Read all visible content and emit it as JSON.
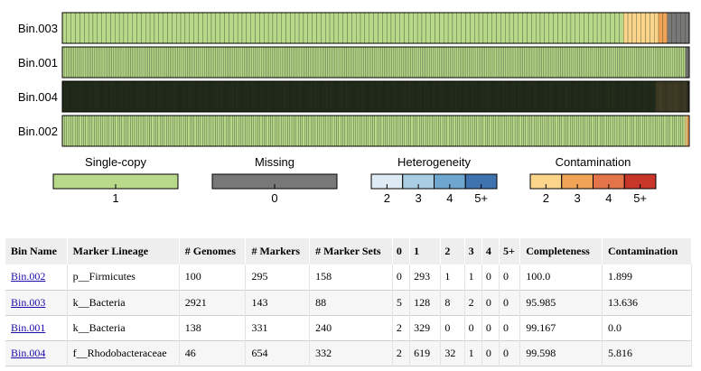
{
  "chart_data": {
    "type": "heatmap",
    "bins": [
      {
        "name": "Bin.003",
        "markers": 143,
        "counts": {
          "missing": 5,
          "single": 128,
          "het2": 0,
          "cont2": 8,
          "cont3": 2
        }
      },
      {
        "name": "Bin.001",
        "markers": 331,
        "counts": {
          "missing": 2,
          "single": 329
        }
      },
      {
        "name": "Bin.004",
        "markers": 654,
        "counts": {
          "missing": 2,
          "single": 619,
          "cont2": 32,
          "cont3": 1
        }
      },
      {
        "name": "Bin.002",
        "markers": 295,
        "counts": {
          "missing": 0,
          "single": 293,
          "cont2": 1,
          "cont3": 1
        }
      }
    ],
    "legend": {
      "single_copy": {
        "title": "Single-copy",
        "ticks": [
          "1"
        ],
        "colors": [
          "#b8d98a"
        ]
      },
      "missing": {
        "title": "Missing",
        "ticks": [
          "0"
        ],
        "colors": [
          "#787878"
        ]
      },
      "heterogeneity": {
        "title": "Heterogeneity",
        "ticks": [
          "2",
          "3",
          "4",
          "5+"
        ],
        "colors": [
          "#deebf5",
          "#a9cde3",
          "#6fa6cf",
          "#3f73b0"
        ]
      },
      "contamination": {
        "title": "Contamination",
        "ticks": [
          "2",
          "3",
          "4",
          "5+"
        ],
        "colors": [
          "#fbd58a",
          "#f1a458",
          "#e4744a",
          "#c8362a"
        ]
      }
    }
  },
  "table": {
    "headers": [
      "Bin Name",
      "Marker Lineage",
      "# Genomes",
      "# Markers",
      "# Marker Sets",
      "0",
      "1",
      "2",
      "3",
      "4",
      "5+",
      "Completeness",
      "Contamination"
    ],
    "rows": [
      {
        "bin": "Bin.002",
        "lineage": "p__Firmicutes",
        "genomes": "100",
        "markers": "295",
        "sets": "158",
        "c0": "0",
        "c1": "293",
        "c2": "1",
        "c3": "1",
        "c4": "0",
        "c5": "0",
        "completeness": "100.0",
        "contamination": "1.899"
      },
      {
        "bin": "Bin.003",
        "lineage": "k__Bacteria",
        "genomes": "2921",
        "markers": "143",
        "sets": "88",
        "c0": "5",
        "c1": "128",
        "c2": "8",
        "c3": "2",
        "c4": "0",
        "c5": "0",
        "completeness": "95.985",
        "contamination": "13.636"
      },
      {
        "bin": "Bin.001",
        "lineage": "k__Bacteria",
        "genomes": "138",
        "markers": "331",
        "sets": "240",
        "c0": "2",
        "c1": "329",
        "c2": "0",
        "c3": "0",
        "c4": "0",
        "c5": "0",
        "completeness": "99.167",
        "contamination": "0.0"
      },
      {
        "bin": "Bin.004",
        "lineage": "f__Rhodobacteraceae",
        "genomes": "46",
        "markers": "654",
        "sets": "332",
        "c0": "2",
        "c1": "619",
        "c2": "32",
        "c3": "1",
        "c4": "0",
        "c5": "0",
        "completeness": "99.598",
        "contamination": "5.816"
      }
    ]
  }
}
